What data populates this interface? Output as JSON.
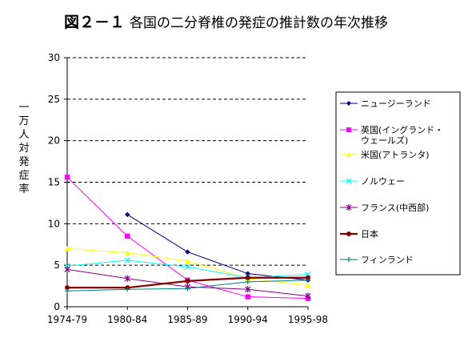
{
  "chart_data": {
    "type": "line",
    "title_prefix": "図２－１",
    "title": "各国の二分脊椎の発症の推計数の年次推移",
    "ylabel": "一万人対発症率",
    "xlabel": "",
    "categories": [
      "1974-79",
      "1980-84",
      "1985-89",
      "1990-94",
      "1995-98"
    ],
    "y_ticks": [
      "0",
      "5",
      "10",
      "15",
      "20",
      "25",
      "30"
    ],
    "ylim": [
      0,
      30
    ],
    "grid": "horizontal dashed",
    "legend_position": "right",
    "series": [
      {
        "name": "ニュージーランド",
        "values": [
          null,
          11.1,
          6.6,
          4.0,
          3.2
        ],
        "color": "#000080",
        "marker": "diamond"
      },
      {
        "name": "英国(イングランド・ウェールズ)",
        "values": [
          15.6,
          8.5,
          3.2,
          1.2,
          1.0
        ],
        "color": "#ff00ff",
        "marker": "square"
      },
      {
        "name": "米国(アトランタ)",
        "values": [
          7.0,
          6.5,
          5.5,
          3.4,
          2.6
        ],
        "color": "#ffff00",
        "marker": "triangle"
      },
      {
        "name": "ノルウェー",
        "values": [
          4.9,
          5.6,
          4.8,
          3.5,
          3.9
        ],
        "color": "#00ffff",
        "marker": "x"
      },
      {
        "name": "フランス(中西部)",
        "values": [
          4.5,
          3.4,
          2.4,
          2.1,
          1.3
        ],
        "color": "#800080",
        "marker": "star"
      },
      {
        "name": "日本",
        "values": [
          2.3,
          2.3,
          3.1,
          3.5,
          3.5
        ],
        "color": "#800000",
        "marker": "circle"
      },
      {
        "name": "フィンランド",
        "values": [
          1.9,
          2.1,
          2.2,
          3.0,
          3.2
        ],
        "color": "#008080",
        "marker": "plus"
      }
    ]
  }
}
